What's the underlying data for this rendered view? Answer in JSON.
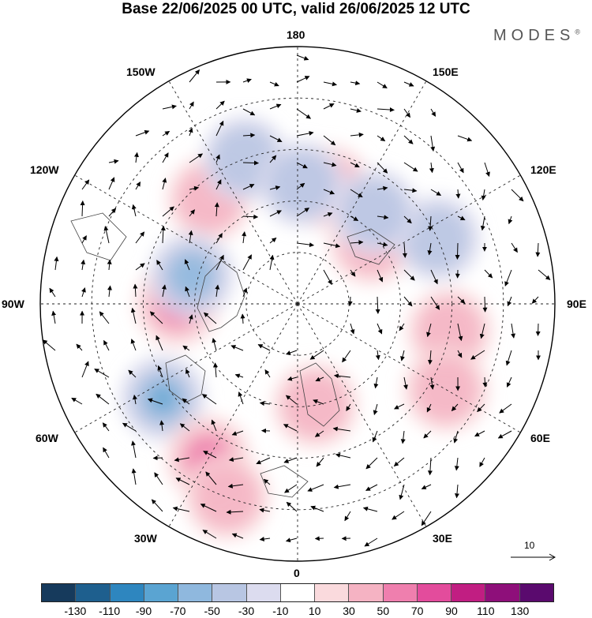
{
  "title": "Base 22/06/2025 00 UTC, valid 26/06/2025 12 UTC",
  "brand": "MODES",
  "brand_mark": "®",
  "longitude_labels": {
    "lon_180": "180",
    "lon_150E": "150E",
    "lon_120E": "120E",
    "lon_90E": "90E",
    "lon_60E": "60E",
    "lon_30E": "30E",
    "lon_0": "0",
    "lon_30W": "30W",
    "lon_60W": "60W",
    "lon_90W": "90W",
    "lon_120W": "120W",
    "lon_150W": "150W"
  },
  "reference_vector": {
    "label": "10"
  },
  "colorbar": {
    "colors": [
      "#163a5c",
      "#1e5f8e",
      "#2e86bf",
      "#5aa4d2",
      "#8fb8de",
      "#b8c6e3",
      "#dcdcef",
      "#ffffff",
      "#fadadd",
      "#f5b3c3",
      "#ef7fae",
      "#e34c9c",
      "#c11e82",
      "#8e0f7a",
      "#5a0a6e"
    ],
    "ticks": [
      "-130",
      "-110",
      "-90",
      "-70",
      "-50",
      "-30",
      "-10",
      "10",
      "30",
      "50",
      "70",
      "90",
      "110",
      "130"
    ]
  },
  "anomaly_centers": [
    {
      "lon": 165,
      "lat": 55,
      "value": 30
    },
    {
      "lon": -140,
      "lat": 50,
      "value": 40
    },
    {
      "lon": -160,
      "lat": 45,
      "value": -40
    },
    {
      "lon": 178,
      "lat": 55,
      "value": -30
    },
    {
      "lon": -90,
      "lat": 55,
      "value": 70
    },
    {
      "lon": -105,
      "lat": 58,
      "value": -45
    },
    {
      "lon": -55,
      "lat": 42,
      "value": -70
    },
    {
      "lon": -30,
      "lat": 38,
      "value": 60
    },
    {
      "lon": -20,
      "lat": 30,
      "value": 35
    },
    {
      "lon": 10,
      "lat": 60,
      "value": 35
    },
    {
      "lon": 80,
      "lat": 45,
      "value": 40
    },
    {
      "lon": 130,
      "lat": 62,
      "value": 40
    },
    {
      "lon": 115,
      "lat": 45,
      "value": -40
    },
    {
      "lon": 140,
      "lat": 55,
      "value": -30
    },
    {
      "lon": 60,
      "lat": 40,
      "value": 25
    }
  ]
}
